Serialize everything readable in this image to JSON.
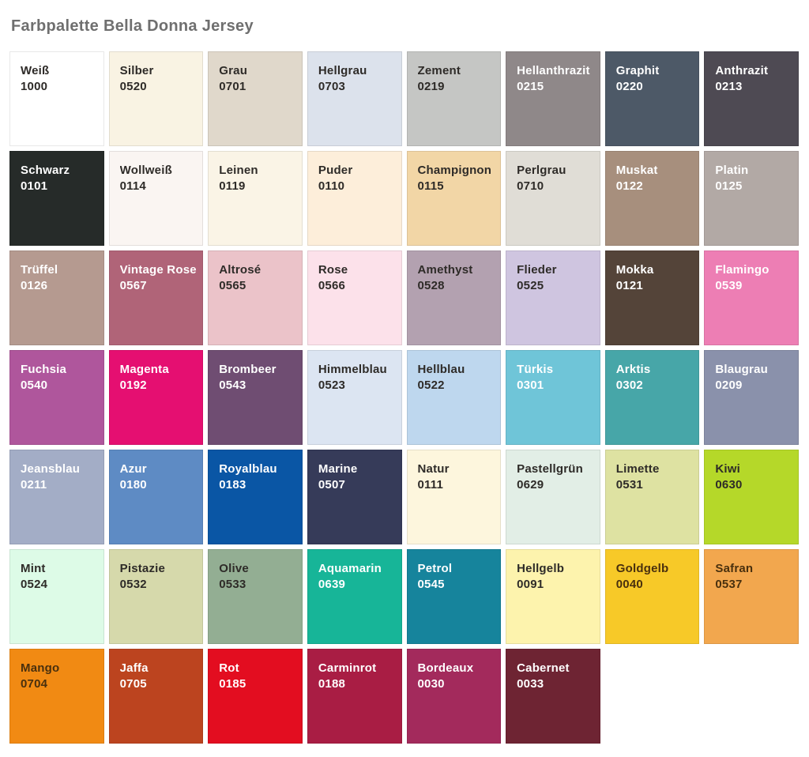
{
  "page": {
    "title": "Farbpalette Bella Donna Jersey",
    "title_color": "#6f6f6f",
    "background": "#ffffff"
  },
  "palette": {
    "columns": 8,
    "rows": 7,
    "dark_text_color": "#2e2b28",
    "light_text_color": "#ffffff",
    "brown_text_color": "#49300e",
    "swatches": [
      {
        "name": "Weiß",
        "code": "1000",
        "bg": "#ffffff",
        "fg": "#2e2b28"
      },
      {
        "name": "Silber",
        "code": "0520",
        "bg": "#f9f3e3",
        "fg": "#2e2b28"
      },
      {
        "name": "Grau",
        "code": "0701",
        "bg": "#e0d8cb",
        "fg": "#2e2b28"
      },
      {
        "name": "Hellgrau",
        "code": "0703",
        "bg": "#dce2ec",
        "fg": "#2e2b28"
      },
      {
        "name": "Zement",
        "code": "0219",
        "bg": "#c5c6c4",
        "fg": "#2e2b28"
      },
      {
        "name": "Hellanthrazit",
        "code": "0215",
        "bg": "#8f8889",
        "fg": "#ffffff"
      },
      {
        "name": "Graphit",
        "code": "0220",
        "bg": "#4d5967",
        "fg": "#ffffff"
      },
      {
        "name": "Anthrazit",
        "code": "0213",
        "bg": "#4e4a53",
        "fg": "#ffffff"
      },
      {
        "name": "Schwarz",
        "code": "0101",
        "bg": "#262b29",
        "fg": "#ffffff"
      },
      {
        "name": "Wollweiß",
        "code": "0114",
        "bg": "#faf5f2",
        "fg": "#2e2b28"
      },
      {
        "name": "Leinen",
        "code": "0119",
        "bg": "#faf4e6",
        "fg": "#2e2b28"
      },
      {
        "name": "Puder",
        "code": "0110",
        "bg": "#fdeeda",
        "fg": "#2e2b28"
      },
      {
        "name": "Champignon",
        "code": "0115",
        "bg": "#f2d6a6",
        "fg": "#2e2b28"
      },
      {
        "name": "Perlgrau",
        "code": "0710",
        "bg": "#e0ddd6",
        "fg": "#2e2b28"
      },
      {
        "name": "Muskat",
        "code": "0122",
        "bg": "#a78f7d",
        "fg": "#ffffff"
      },
      {
        "name": "Platin",
        "code": "0125",
        "bg": "#b2a9a5",
        "fg": "#ffffff"
      },
      {
        "name": "Trüffel",
        "code": "0126",
        "bg": "#b59a90",
        "fg": "#ffffff"
      },
      {
        "name": "Vintage Rose",
        "code": "0567",
        "bg": "#b06478",
        "fg": "#ffffff"
      },
      {
        "name": "Altrosé",
        "code": "0565",
        "bg": "#ebc3c9",
        "fg": "#2e2b28"
      },
      {
        "name": "Rose",
        "code": "0566",
        "bg": "#fce1ea",
        "fg": "#2e2b28"
      },
      {
        "name": "Amethyst",
        "code": "0528",
        "bg": "#b3a1b0",
        "fg": "#2e2b28"
      },
      {
        "name": "Flieder",
        "code": "0525",
        "bg": "#cfc5e0",
        "fg": "#2e2b28"
      },
      {
        "name": "Mokka",
        "code": "0121",
        "bg": "#544439",
        "fg": "#ffffff"
      },
      {
        "name": "Flamingo",
        "code": "0539",
        "bg": "#ed7eb4",
        "fg": "#ffffff"
      },
      {
        "name": "Fuchsia",
        "code": "0540",
        "bg": "#af569c",
        "fg": "#ffffff"
      },
      {
        "name": "Magenta",
        "code": "0192",
        "bg": "#e50f71",
        "fg": "#ffffff"
      },
      {
        "name": "Brombeer",
        "code": "0543",
        "bg": "#6f4d72",
        "fg": "#ffffff"
      },
      {
        "name": "Himmelblau",
        "code": "0523",
        "bg": "#dce5f2",
        "fg": "#2e2b28"
      },
      {
        "name": "Hellblau",
        "code": "0522",
        "bg": "#bed7ee",
        "fg": "#2e2b28"
      },
      {
        "name": "Türkis",
        "code": "0301",
        "bg": "#6fc5d8",
        "fg": "#ffffff"
      },
      {
        "name": "Arktis",
        "code": "0302",
        "bg": "#47a6a8",
        "fg": "#ffffff"
      },
      {
        "name": "Blaugrau",
        "code": "0209",
        "bg": "#8a91ab",
        "fg": "#ffffff"
      },
      {
        "name": "Jeansblau",
        "code": "0211",
        "bg": "#a3adc6",
        "fg": "#ffffff"
      },
      {
        "name": "Azur",
        "code": "0180",
        "bg": "#5e8bc4",
        "fg": "#ffffff"
      },
      {
        "name": "Royalblau",
        "code": "0183",
        "bg": "#0a56a5",
        "fg": "#ffffff"
      },
      {
        "name": "Marine",
        "code": "0507",
        "bg": "#363b59",
        "fg": "#ffffff"
      },
      {
        "name": "Natur",
        "code": "0111",
        "bg": "#fdf6dd",
        "fg": "#2e2b28"
      },
      {
        "name": "Pastellgrün",
        "code": "0629",
        "bg": "#e2eee6",
        "fg": "#2e2b28"
      },
      {
        "name": "Limette",
        "code": "0531",
        "bg": "#dee2a2",
        "fg": "#2e2b28"
      },
      {
        "name": "Kiwi",
        "code": "0630",
        "bg": "#b5d829",
        "fg": "#2e2b28"
      },
      {
        "name": "Mint",
        "code": "0524",
        "bg": "#ddfbe7",
        "fg": "#2e2b28"
      },
      {
        "name": "Pistazie",
        "code": "0532",
        "bg": "#d6d9ab",
        "fg": "#2e2b28"
      },
      {
        "name": "Olive",
        "code": "0533",
        "bg": "#93ae93",
        "fg": "#2e2b28"
      },
      {
        "name": "Aquamarin",
        "code": "0639",
        "bg": "#17b598",
        "fg": "#ffffff"
      },
      {
        "name": "Petrol",
        "code": "0545",
        "bg": "#16849c",
        "fg": "#ffffff"
      },
      {
        "name": "Hellgelb",
        "code": "0091",
        "bg": "#fdf3ad",
        "fg": "#2e2b28"
      },
      {
        "name": "Goldgelb",
        "code": "0040",
        "bg": "#f7c928",
        "fg": "#49300e"
      },
      {
        "name": "Safran",
        "code": "0537",
        "bg": "#f2a74e",
        "fg": "#49300e"
      },
      {
        "name": "Mango",
        "code": "0704",
        "bg": "#f18a13",
        "fg": "#49300e"
      },
      {
        "name": "Jaffa",
        "code": "0705",
        "bg": "#bc441f",
        "fg": "#ffffff"
      },
      {
        "name": "Rot",
        "code": "0185",
        "bg": "#e30d20",
        "fg": "#ffffff"
      },
      {
        "name": "Carminrot",
        "code": "0188",
        "bg": "#a91d44",
        "fg": "#ffffff"
      },
      {
        "name": "Bordeaux",
        "code": "0030",
        "bg": "#a32a5c",
        "fg": "#ffffff"
      },
      {
        "name": "Cabernet",
        "code": "0033",
        "bg": "#6e2433",
        "fg": "#ffffff"
      }
    ]
  }
}
